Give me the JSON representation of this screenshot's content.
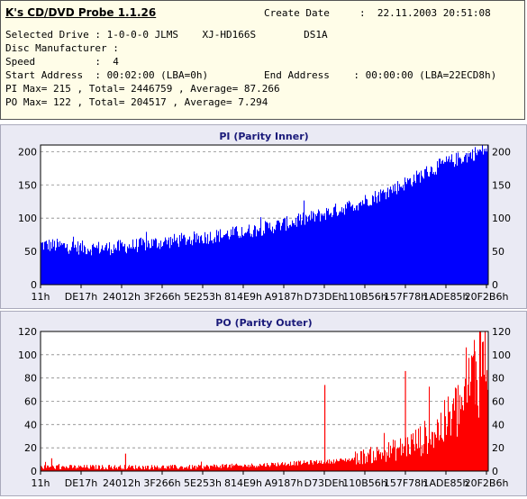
{
  "header": {
    "app_title": "K's CD/DVD Probe 1.1.26",
    "create_date_label": "Create Date",
    "create_date_value": ":  22.11.2003 20:51:08",
    "selected_drive": "Selected Drive : 1-0-0-0 JLMS    XJ-HD166S        DS1A",
    "disc_manufacturer": "Disc Manufacturer :",
    "speed": "Speed          :  4",
    "start_address": "Start Address  : 00:02:00 (LBA=0h)",
    "end_address": "End Address    : 00:00:00 (LBA=22ECD8h)",
    "pi_summary": "PI Max= 215 , Total= 2446759 , Average= 87.266",
    "po_summary": "PO Max= 122 , Total= 204517 , Average= 7.294"
  },
  "chart_data": [
    {
      "type": "area",
      "title": "PI (Parity Inner)",
      "color": "#0000ff",
      "ylim": [
        0,
        210
      ],
      "yticks": [
        0,
        50,
        100,
        150,
        200
      ],
      "x_tick_labels": [
        "11h",
        "DE17h",
        "24012h",
        "3F266h",
        "5E253h",
        "814E9h",
        "A9187h",
        "D73DEh",
        "110B56h",
        "157F78h",
        "1ADE85h",
        "20F2B6h"
      ],
      "series": [
        {
          "x": [
            0,
            5,
            10,
            15,
            20,
            25,
            30,
            35,
            40,
            45,
            50,
            55,
            60,
            65,
            70,
            75,
            80,
            85,
            90,
            95,
            100
          ],
          "values": [
            60,
            58,
            55,
            55,
            58,
            62,
            66,
            70,
            74,
            79,
            85,
            92,
            100,
            110,
            120,
            133,
            148,
            165,
            182,
            193,
            205
          ]
        }
      ]
    },
    {
      "type": "area",
      "title": "PO (Parity Outer)",
      "color": "#ff0000",
      "ylim": [
        0,
        120
      ],
      "yticks": [
        0,
        20,
        40,
        60,
        80,
        100,
        120
      ],
      "x_tick_labels": [
        "11h",
        "DE17h",
        "24012h",
        "3F266h",
        "5E253h",
        "814E9h",
        "A9187h",
        "D73DEh",
        "110B56h",
        "157F78h",
        "1ADE85h",
        "20F2B6h"
      ],
      "series": [
        {
          "x": [
            0,
            5,
            10,
            15,
            20,
            25,
            30,
            35,
            40,
            45,
            50,
            55,
            60,
            65,
            70,
            75,
            80,
            85,
            90,
            95,
            100
          ],
          "values": [
            3,
            3,
            3,
            3,
            3,
            3,
            3,
            3,
            4,
            4,
            5,
            6,
            7,
            8,
            10,
            13,
            17,
            24,
            35,
            55,
            110
          ]
        }
      ],
      "spikes": [
        {
          "x": 63.5,
          "value": 74
        },
        {
          "x": 81.5,
          "value": 86
        },
        {
          "x": 97,
          "value": 103
        },
        {
          "x": 2.5,
          "value": 11
        },
        {
          "x": 19,
          "value": 15
        }
      ]
    }
  ]
}
